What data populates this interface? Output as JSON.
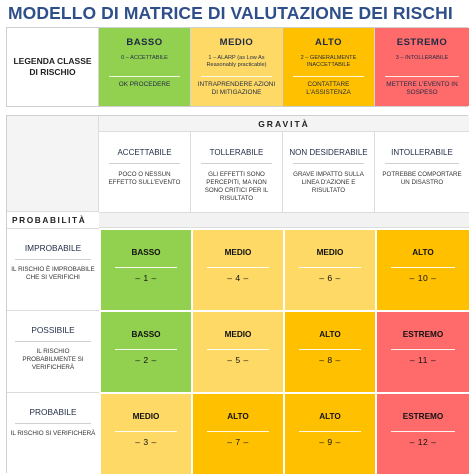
{
  "title": "MODELLO DI MATRICE DI VALUTAZIONE DEI RISCHI",
  "legend": {
    "label": "LEGENDA CLASSE DI RISCHIO",
    "levels": [
      {
        "name": "BASSO",
        "desc": "0 – ACCETTABILE",
        "action": "OK PROCEDERE",
        "color": "#92d050"
      },
      {
        "name": "MEDIO",
        "desc": "1 – ALARP (as Low As Reasonably practicable)",
        "action": "INTRAPRENDERE AZIONI DI MITIGAZIONE",
        "color": "#ffd966"
      },
      {
        "name": "ALTO",
        "desc": "2 – GENERALMENTE INACCETTABILE",
        "action": "CONTATTARE L'ASSISTENZA",
        "color": "#ffc000"
      },
      {
        "name": "ESTREMO",
        "desc": "3 – INTOLLERABILE",
        "action": "METTERE L'EVENTO IN SOSPESO",
        "color": "#ff6b6b"
      }
    ]
  },
  "severity": {
    "header": "GRAVITÀ",
    "columns": [
      {
        "name": "ACCETTABILE",
        "desc": "POCO O NESSUN EFFETTO SULL'EVENTO"
      },
      {
        "name": "TOLLERABILE",
        "desc": "GLI EFFETTI SONO PERCEPITI, MA NON SONO CRITICI PER IL RISULTATO"
      },
      {
        "name": "NON DESIDERABILE",
        "desc": "GRAVE IMPATTO SULLA LINEA D'AZIONE E RISULTATO"
      },
      {
        "name": "INTOLLERABILE",
        "desc": "POTREBBE COMPORTARE UN DISASTRO"
      }
    ]
  },
  "probability": {
    "header": "PROBABILITÀ",
    "rows": [
      {
        "name": "IMPROBABILE",
        "desc": "IL RISCHIO È IMPROBABILE CHE SI VERIFICHI",
        "cells": [
          {
            "level": "BASSO",
            "num": "– 1 –",
            "color": "#92d050"
          },
          {
            "level": "MEDIO",
            "num": "– 4 –",
            "color": "#ffd966"
          },
          {
            "level": "MEDIO",
            "num": "– 6 –",
            "color": "#ffd966"
          },
          {
            "level": "ALTO",
            "num": "– 10 –",
            "color": "#ffc000"
          }
        ]
      },
      {
        "name": "POSSIBILE",
        "desc": "IL RISCHIO PROBABILMENTE SI VERIFICHERÀ",
        "cells": [
          {
            "level": "BASSO",
            "num": "– 2 –",
            "color": "#92d050"
          },
          {
            "level": "MEDIO",
            "num": "– 5 –",
            "color": "#ffd966"
          },
          {
            "level": "ALTO",
            "num": "– 8 –",
            "color": "#ffc000"
          },
          {
            "level": "ESTREMO",
            "num": "– 11 –",
            "color": "#ff6b6b"
          }
        ]
      },
      {
        "name": "PROBABILE",
        "desc": "IL RISCHIO SI VERIFICHERÀ",
        "cells": [
          {
            "level": "MEDIO",
            "num": "– 3 –",
            "color": "#ffd966"
          },
          {
            "level": "ALTO",
            "num": "– 7 –",
            "color": "#ffc000"
          },
          {
            "level": "ALTO",
            "num": "– 9 –",
            "color": "#ffc000"
          },
          {
            "level": "ESTREMO",
            "num": "– 12 –",
            "color": "#ff6b6b"
          }
        ]
      }
    ]
  }
}
